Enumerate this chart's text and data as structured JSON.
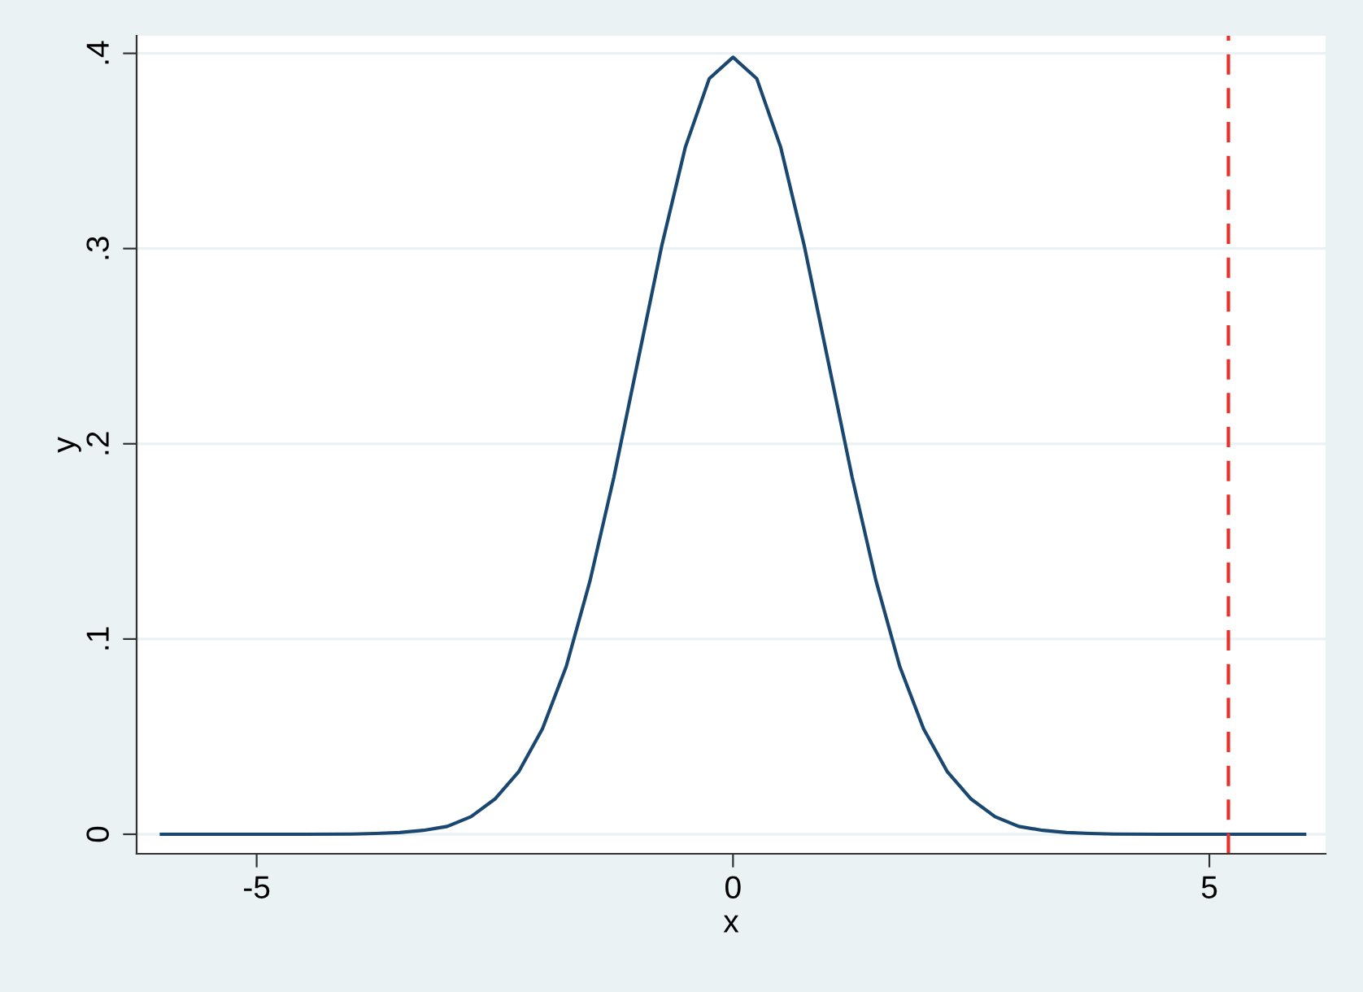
{
  "chart_data": {
    "type": "line",
    "xlabel": "x",
    "ylabel": "y",
    "x": [
      -6,
      -5,
      -4.5,
      -4,
      -3.75,
      -3.5,
      -3.25,
      -3,
      -2.75,
      -2.5,
      -2.25,
      -2,
      -1.75,
      -1.5,
      -1.25,
      -1,
      -0.75,
      -0.5,
      -0.25,
      0,
      0.25,
      0.5,
      0.75,
      1,
      1.25,
      1.5,
      1.75,
      2,
      2.25,
      2.5,
      2.75,
      3,
      3.25,
      3.5,
      3.75,
      4,
      4.5,
      5,
      6
    ],
    "series": [
      {
        "color": "#1a476f",
        "values": [
          0,
          0,
          0,
          0.0001,
          0.0004,
          0.0009,
          0.002,
          0.004,
          0.009,
          0.018,
          0.032,
          0.054,
          0.086,
          0.13,
          0.183,
          0.242,
          0.301,
          0.352,
          0.387,
          0.398,
          0.387,
          0.352,
          0.301,
          0.242,
          0.183,
          0.13,
          0.086,
          0.054,
          0.032,
          0.018,
          0.009,
          0.004,
          0.002,
          0.0009,
          0.0004,
          0.0001,
          0,
          0,
          0
        ]
      }
    ],
    "xlim": [
      -6.26,
      6.22
    ],
    "ylim": [
      -0.01,
      0.409
    ],
    "xticks": [
      -5,
      0,
      5
    ],
    "yticks": [
      {
        "value": 0,
        "label": "0"
      },
      {
        "value": 0.1,
        "label": ".1"
      },
      {
        "value": 0.2,
        "label": ".2"
      },
      {
        "value": 0.3,
        "label": ".3"
      },
      {
        "value": 0.4,
        "label": ".4"
      }
    ],
    "ref_lines": [
      {
        "axis": "x",
        "value": 5.2,
        "color": "#e8302a",
        "line_style": "dashed"
      }
    ],
    "grid": "y",
    "legend": false,
    "line_style": "solid",
    "marker": "none"
  }
}
